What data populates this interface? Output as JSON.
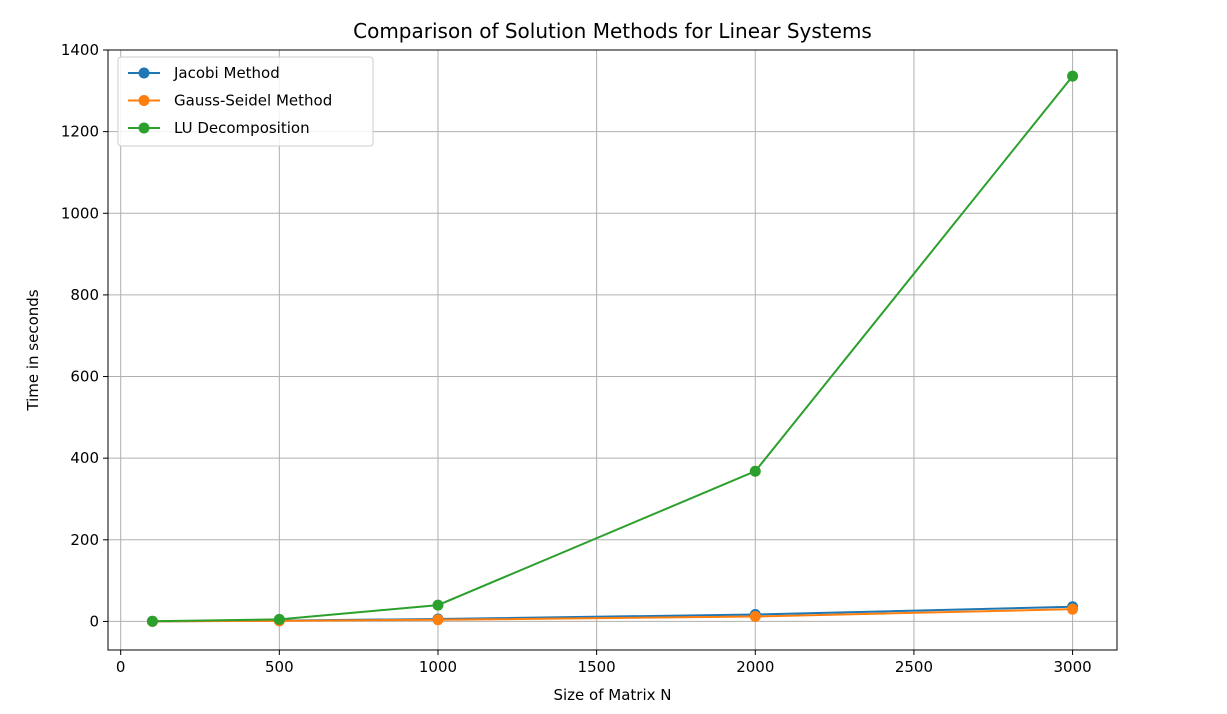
{
  "chart_data": {
    "type": "line",
    "title": "Comparison of Solution Methods for Linear Systems",
    "xlabel": "Size of Matrix N",
    "ylabel": "Time in seconds",
    "xlim": [
      -40,
      3140
    ],
    "ylim": [
      -70,
      1400
    ],
    "xticks": [
      0,
      500,
      1000,
      1500,
      2000,
      2500,
      3000
    ],
    "yticks": [
      0,
      200,
      400,
      600,
      800,
      1000,
      1200,
      1400
    ],
    "x": [
      100,
      500,
      1000,
      2000,
      3000
    ],
    "grid": true,
    "legend_position": "top-left",
    "series": [
      {
        "name": "Jacobi Method",
        "color": "#1f77b4",
        "values": [
          0.2,
          2,
          6,
          17,
          36
        ]
      },
      {
        "name": "Gauss-Seidel Method",
        "color": "#ff7f0e",
        "values": [
          0.1,
          1.5,
          4,
          12,
          30
        ]
      },
      {
        "name": "LU Decomposition",
        "color": "#2ca02c",
        "values": [
          0.5,
          5,
          40,
          368,
          1336
        ]
      }
    ]
  }
}
